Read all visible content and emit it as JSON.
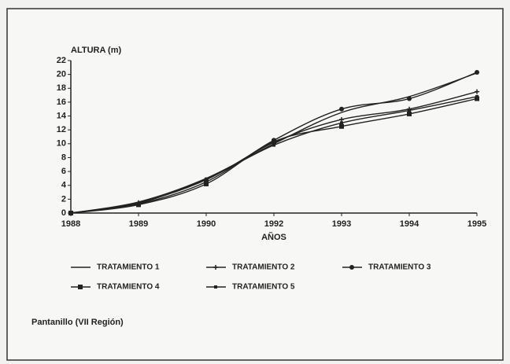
{
  "chart_data": {
    "type": "line",
    "y_label": "ALTURA (m)",
    "x_label": "AÑOS",
    "note": "Pantanillo (VII Región)",
    "categories": [
      "1988",
      "1989",
      "1990",
      "1992",
      "1993",
      "1994",
      "1995"
    ],
    "series": [
      {
        "name": "TRATAMIENTO 1",
        "color": "#222",
        "marker": "none",
        "values": [
          0,
          1.6,
          5.0,
          10.0,
          14.5,
          16.8,
          20.2
        ]
      },
      {
        "name": "TRATAMIENTO 2",
        "color": "#222",
        "marker": "plus",
        "values": [
          0,
          1.5,
          4.8,
          10.2,
          13.5,
          15.0,
          17.5
        ]
      },
      {
        "name": "TRATAMIENTO 3",
        "color": "#222",
        "marker": "circle",
        "values": [
          0,
          1.3,
          4.5,
          10.5,
          15.0,
          16.5,
          20.3
        ]
      },
      {
        "name": "TRATAMIENTO 4",
        "color": "#222",
        "marker": "square",
        "values": [
          0,
          1.2,
          4.2,
          10.3,
          12.5,
          14.3,
          16.5
        ]
      },
      {
        "name": "TRATAMIENTO 5",
        "color": "#222",
        "marker": "small-square",
        "values": [
          0,
          1.4,
          4.9,
          9.8,
          13.0,
          14.8,
          16.8
        ]
      }
    ],
    "ylim": [
      0,
      22
    ],
    "yticks": [
      0,
      2,
      4,
      6,
      8,
      10,
      12,
      14,
      16,
      18,
      20,
      22
    ],
    "grid": false
  }
}
